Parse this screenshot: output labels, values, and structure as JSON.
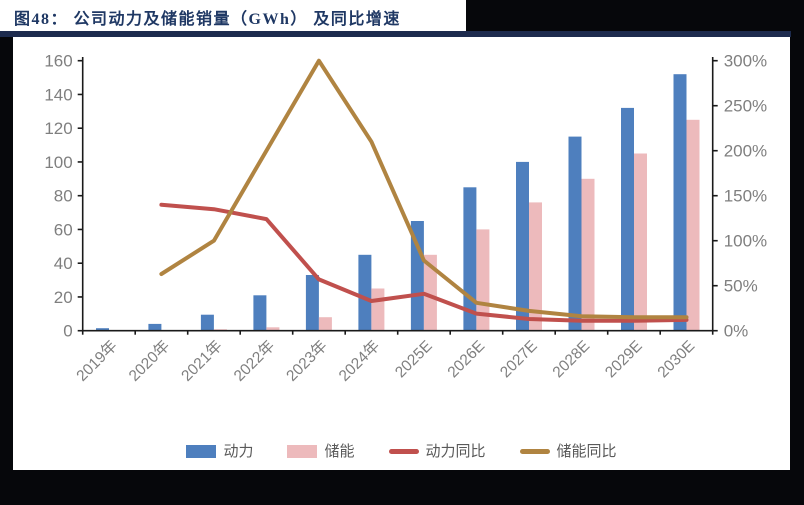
{
  "title": "图48： 公司动力及储能销量（GWh） 及同比增速",
  "colors": {
    "title_text": "#1F3864",
    "title_underline": "#1d2b4e",
    "page_background": "#06070b",
    "panel_background": "#ffffff",
    "axis_line": "#1a1a1a",
    "axis_tick_label": "#7f7f7f",
    "legend_label": "#595959",
    "power_bar": "#4E7FBE",
    "storage_bar": "#EDBABC",
    "power_yoy_line": "#C0504D",
    "storage_yoy_line": "#B08441"
  },
  "chart_data": {
    "type": "bar",
    "subtype": "bar+line dual axis",
    "title": "图48： 公司动力及储能销量（GWh） 及同比增速",
    "categories": [
      "2019年",
      "2020年",
      "2021年",
      "2022年",
      "2023年",
      "2024年",
      "2025E",
      "2026E",
      "2027E",
      "2028E",
      "2029E",
      "2030E"
    ],
    "series": [
      {
        "key": "power",
        "name": "动力",
        "type": "bar",
        "axis": "left",
        "color": "#4E7FBE",
        "values": [
          1.5,
          4,
          9.5,
          21,
          33,
          45,
          65,
          85,
          100,
          115,
          132,
          152
        ]
      },
      {
        "key": "storage",
        "name": "储能",
        "type": "bar",
        "axis": "left",
        "color": "#EDBABC",
        "values": [
          0.2,
          0.3,
          0.8,
          2,
          8,
          25,
          45,
          60,
          76,
          90,
          105,
          125
        ]
      },
      {
        "key": "power-yoy",
        "name": "动力同比",
        "type": "line",
        "axis": "right",
        "color": "#C0504D",
        "values": [
          null,
          140,
          135,
          124,
          57,
          33,
          41,
          19,
          13,
          11,
          11,
          12
        ]
      },
      {
        "key": "storage-yoy",
        "name": "储能同比",
        "type": "line",
        "axis": "right",
        "color": "#B08441",
        "values": [
          null,
          63,
          100,
          200,
          300,
          210,
          78,
          31,
          22,
          16,
          15,
          15
        ]
      }
    ],
    "left_axis": {
      "min": 0,
      "max": 160,
      "step": 20,
      "labels": [
        "0",
        "20",
        "40",
        "60",
        "80",
        "100",
        "120",
        "140",
        "160"
      ],
      "title": ""
    },
    "right_axis": {
      "min": 0,
      "max": 300,
      "step": 50,
      "labels": [
        "0%",
        "50%",
        "100%",
        "150%",
        "200%",
        "250%",
        "300%"
      ],
      "title": ""
    },
    "grid": false,
    "legend_position": "bottom",
    "x_label_rotation_deg": -45
  }
}
